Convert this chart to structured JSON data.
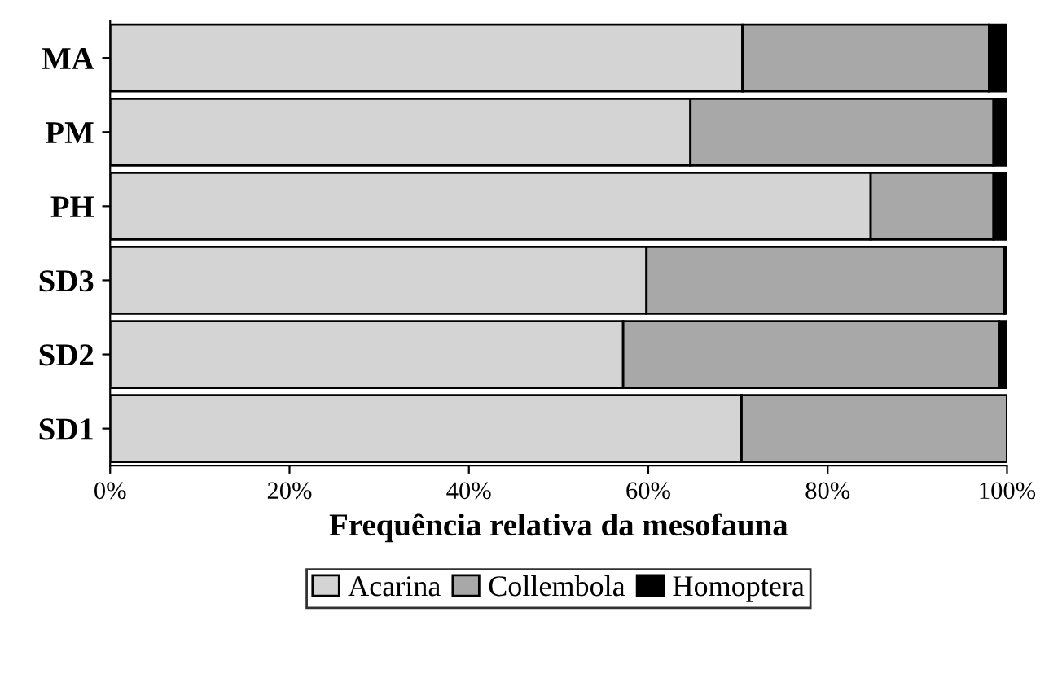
{
  "chart_data": {
    "type": "bar",
    "orientation": "horizontal",
    "stacked": true,
    "xlabel": "Frequência relativa da mesofauna",
    "categories": [
      "MA",
      "PM",
      "PH",
      "SD3",
      "SD2",
      "SD1"
    ],
    "series": [
      {
        "name": "Acarina",
        "color": "#d4d4d4",
        "values": [
          70.5,
          64.7,
          84.8,
          59.8,
          57.2,
          70.4
        ]
      },
      {
        "name": "Collembola",
        "color": "#a8a8a8",
        "values": [
          27.5,
          33.8,
          13.7,
          39.9,
          41.9,
          29.6
        ]
      },
      {
        "name": "Homoptera",
        "color": "#000000",
        "values": [
          2.0,
          1.5,
          1.5,
          0.3,
          0.9,
          0.0
        ]
      }
    ],
    "xlim": [
      0,
      100
    ],
    "xticks": [
      {
        "value": 0,
        "label": "0%"
      },
      {
        "value": 20,
        "label": "20%"
      },
      {
        "value": 40,
        "label": "40%"
      },
      {
        "value": 60,
        "label": "60%"
      },
      {
        "value": 80,
        "label": "80%"
      },
      {
        "value": 100,
        "label": "100%"
      }
    ],
    "grid": false,
    "legend": "bottom"
  }
}
